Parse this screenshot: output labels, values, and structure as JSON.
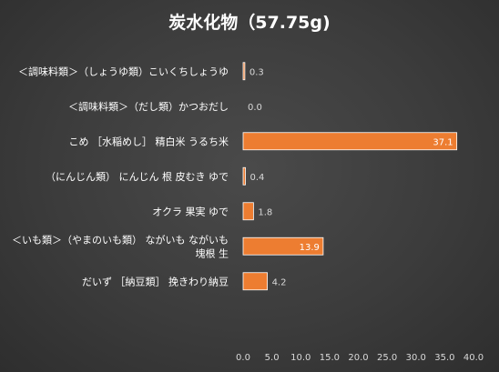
{
  "chart_data": {
    "type": "bar",
    "orientation": "horizontal",
    "title": "炭水化物（57.75g)",
    "categories": [
      [
        "＜調味料類＞（しょうゆ類）こいくちしょうゆ"
      ],
      [
        "＜調味料類＞（だし類）かつおだし"
      ],
      [
        "こめ ［水稲めし］ 精白米 うるち米"
      ],
      [
        "（にんじん類） にんじん 根 皮むき ゆで"
      ],
      [
        "オクラ 果実 ゆで"
      ],
      [
        "＜いも類＞（やまのいも類） ながいも ながいも",
        "塊根 生"
      ],
      [
        "だいず ［納豆類］ 挽きわり納豆"
      ]
    ],
    "values": [
      0.3,
      0.0,
      37.1,
      0.4,
      1.8,
      13.9,
      4.2
    ],
    "value_labels": [
      "0.3",
      "0.0",
      "37.1",
      "0.4",
      "1.8",
      "13.9",
      "4.2"
    ],
    "x_ticks": [
      "0.0",
      "5.0",
      "10.0",
      "15.0",
      "20.0",
      "25.0",
      "30.0",
      "35.0",
      "40.0"
    ],
    "xlim": [
      0,
      40
    ],
    "grid": false,
    "legend": "none",
    "colors": {
      "bar": "#ed7d31",
      "bar_edge": "#ffffff",
      "label_inside": "#ffffff",
      "label_outside": "#d9d9d9"
    }
  }
}
